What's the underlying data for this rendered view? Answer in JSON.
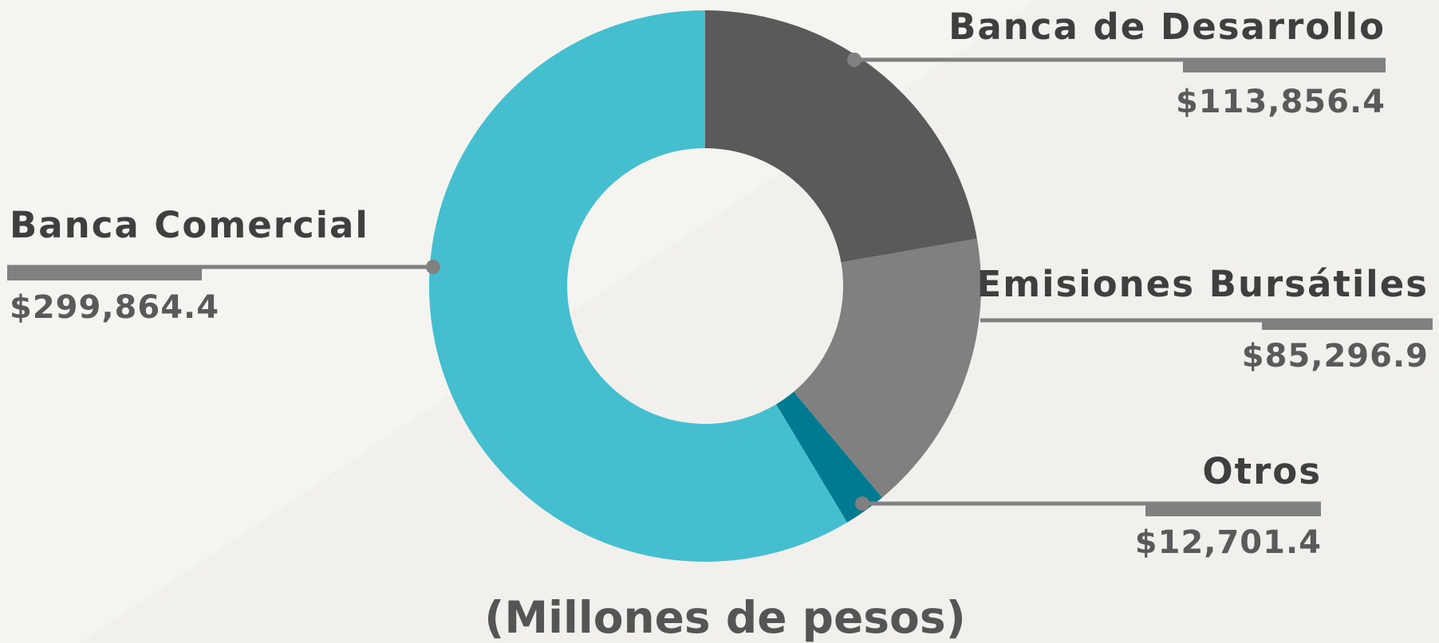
{
  "chart_data": {
    "type": "donut",
    "title": "(Millones de pesos)",
    "categories": [
      "Banca de Desarrollo",
      "Emisiones Bursátiles",
      "Otros",
      "Banca Comercial"
    ],
    "values": [
      113856.4,
      85296.9,
      12701.4,
      299864.4
    ],
    "value_labels": [
      "$113,856.4",
      "$85,296.9",
      "$12,701.4",
      "$299,864.4"
    ],
    "colors": [
      "#5a5a5a",
      "#808080",
      "#007a91",
      "#45bfcf"
    ]
  }
}
